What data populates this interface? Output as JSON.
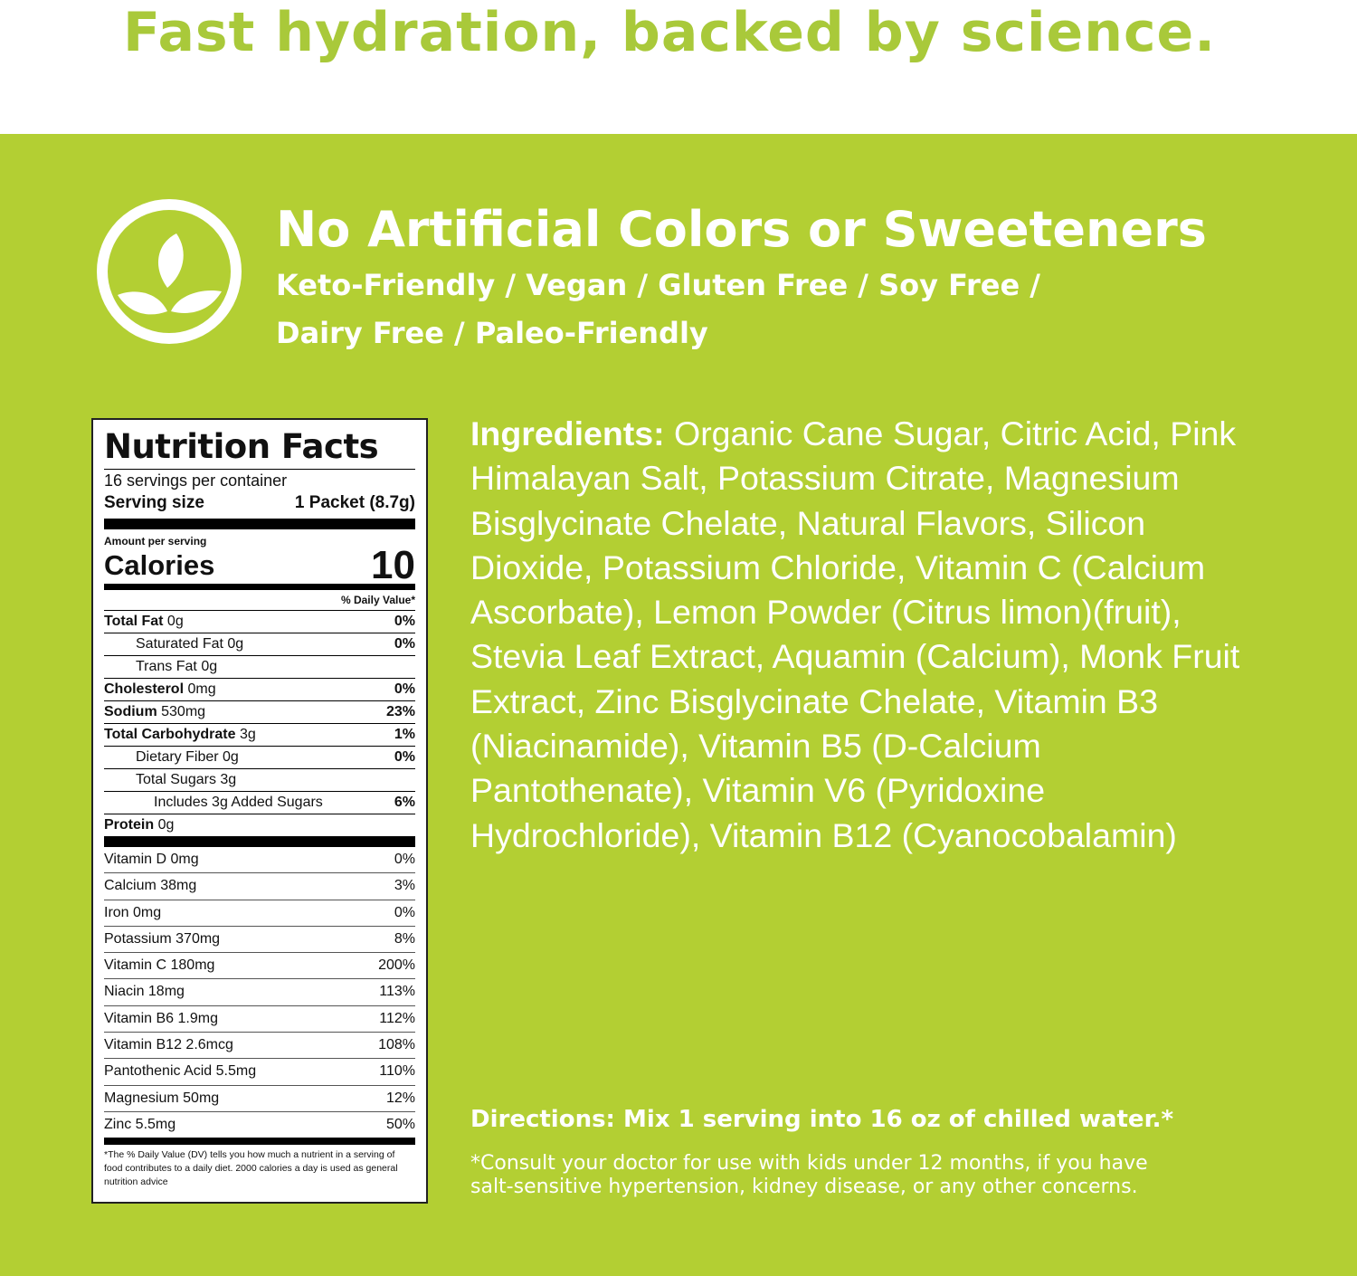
{
  "title": "Fast hydration, backed by science.",
  "colors": {
    "title": "#a9c93a",
    "panel": "#b3cf33"
  },
  "feature": {
    "icon": "leaf-sprout-icon",
    "heading": "No Artificial Colors or Sweeteners",
    "line1": "Keto-Friendly / Vegan / Gluten Free / Soy Free /",
    "line2": "Dairy Free / Paleo-Friendly"
  },
  "nutrition": {
    "heading": "Nutrition Facts",
    "servings": "16 servings per container",
    "serving_label": "Serving size",
    "serving_value": "1 Packet (8.7g)",
    "amount_per_serving": "Amount per serving",
    "calories_label": "Calories",
    "calories_value": "10",
    "dv_header": "% Daily Value*",
    "rows": [
      {
        "bold": "Total Fat",
        "rest": " 0g",
        "dv": "0%"
      },
      {
        "bold": "",
        "rest": "Saturated Fat 0g",
        "dv": "0%"
      },
      {
        "bold": "",
        "rest": "Trans Fat 0g",
        "dv": ""
      },
      {
        "bold": "Cholesterol",
        "rest": " 0mg",
        "dv": "0%"
      },
      {
        "bold": "Sodium",
        "rest": " 530mg",
        "dv": "23%"
      },
      {
        "bold": "Total Carbohydrate",
        "rest": " 3g",
        "dv": "1%"
      },
      {
        "bold": "",
        "rest": "Dietary Fiber 0g",
        "dv": "0%"
      },
      {
        "bold": "",
        "rest": "Total Sugars 3g",
        "dv": ""
      },
      {
        "bold": "",
        "rest": "Includes 3g Added Sugars",
        "dv": "6%"
      },
      {
        "bold": "Protein",
        "rest": " 0g",
        "dv": ""
      }
    ],
    "vitamins": [
      {
        "name": "Vitamin D 0mg",
        "dv": "0%"
      },
      {
        "name": "Calcium 38mg",
        "dv": "3%"
      },
      {
        "name": "Iron 0mg",
        "dv": "0%"
      },
      {
        "name": "Potassium 370mg",
        "dv": "8%"
      },
      {
        "name": "Vitamin C 180mg",
        "dv": "200%"
      },
      {
        "name": "Niacin 18mg",
        "dv": "113%"
      },
      {
        "name": "Vitamin B6 1.9mg",
        "dv": "112%"
      },
      {
        "name": "Vitamin B12 2.6mcg",
        "dv": "108%"
      },
      {
        "name": "Pantothenic Acid 5.5mg",
        "dv": "110%"
      },
      {
        "name": "Magnesium 50mg",
        "dv": "12%"
      },
      {
        "name": "Zinc 5.5mg",
        "dv": "50%"
      }
    ],
    "footnote": "*The % Daily Value (DV) tells you how much a nutrient in a serving of food contributes to a daily diet. 2000 calories a day is used as general nutrition advice"
  },
  "ingredients": {
    "label": "Ingredients:",
    "text": " Organic Cane Sugar, Citric Acid, Pink Himalayan Salt, Potassium Citrate, Magnesium Bisglycinate Chelate, Natural Flavors, Silicon Dioxide, Potassium Chloride, Vitamin C (Calcium Ascorbate), Lemon Powder (Citrus limon)(fruit), Stevia Leaf Extract, Aquamin (Calcium), Monk Fruit Extract, Zinc Bisglycinate Chelate, Vitamin B3 (Niacinamide), Vitamin B5 (D-Calcium Pantothenate), Vitamin V6 (Pyridoxine Hydrochloride), Vitamin B12 (Cyanocobalamin)"
  },
  "directions": "Directions: Mix 1 serving into 16 oz of chilled water.*",
  "disclaimer_line1": "*Consult your doctor for use with kids under 12 months, if you have",
  "disclaimer_line2": "salt-sensitive hypertension, kidney disease, or any other concerns."
}
